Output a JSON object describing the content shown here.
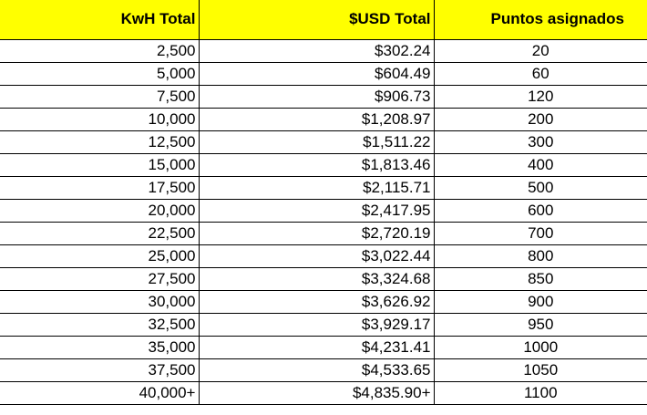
{
  "colors": {
    "header_bg": "#ffff00",
    "grid": "#000000",
    "cell_bg": "#ffffff",
    "text": "#000000"
  },
  "table": {
    "headers": [
      "KwH Total",
      "$USD Total",
      "Puntos asignados"
    ],
    "rows": [
      [
        "2,500",
        "$302.24",
        "20"
      ],
      [
        "5,000",
        "$604.49",
        "60"
      ],
      [
        "7,500",
        "$906.73",
        "120"
      ],
      [
        "10,000",
        "$1,208.97",
        "200"
      ],
      [
        "12,500",
        "$1,511.22",
        "300"
      ],
      [
        "15,000",
        "$1,813.46",
        "400"
      ],
      [
        "17,500",
        "$2,115.71",
        "500"
      ],
      [
        "20,000",
        "$2,417.95",
        "600"
      ],
      [
        "22,500",
        "$2,720.19",
        "700"
      ],
      [
        "25,000",
        "$3,022.44",
        "800"
      ],
      [
        "27,500",
        "$3,324.68",
        "850"
      ],
      [
        "30,000",
        "$3,626.92",
        "900"
      ],
      [
        "32,500",
        "$3,929.17",
        "950"
      ],
      [
        "35,000",
        "$4,231.41",
        "1000"
      ],
      [
        "37,500",
        "$4,533.65",
        "1050"
      ],
      [
        "40,000+",
        "$4,835.90+",
        "1100"
      ]
    ]
  }
}
